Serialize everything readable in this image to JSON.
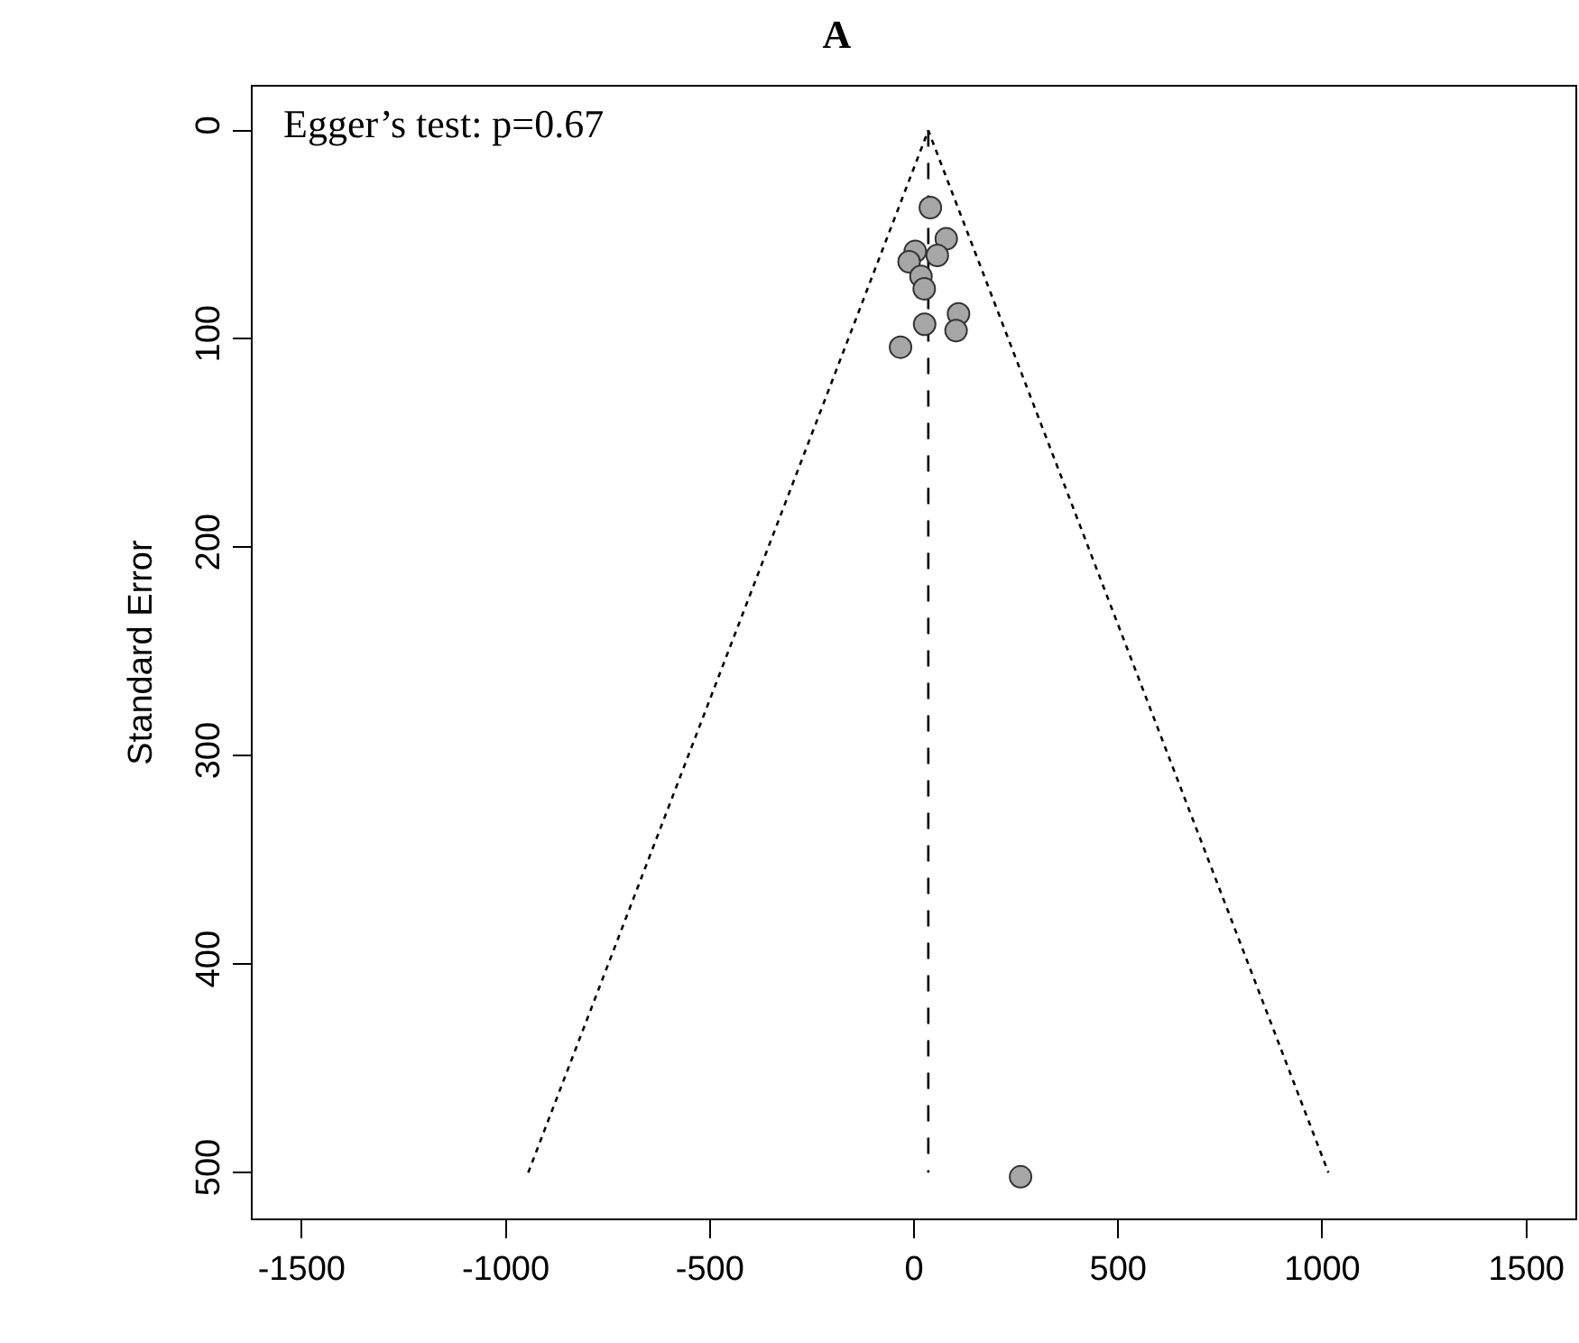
{
  "chart_data": {
    "type": "scatter",
    "title": "A",
    "ylabel": "Standard Error",
    "annotations": [
      "Egger’s test: p=0.67"
    ],
    "xlim": [
      -1620,
      1620
    ],
    "xticks": [
      -1500,
      -1000,
      -500,
      0,
      500,
      1000,
      1500
    ],
    "ylim": [
      522,
      -21
    ],
    "yticks": [
      0,
      100,
      200,
      300,
      400,
      500
    ],
    "series": [
      {
        "type": "line",
        "line_style": "dotted",
        "marker": "none",
        "color": "#000000",
        "x": [
          -945,
          35,
          1015
        ],
        "values": [
          500,
          0,
          500
        ]
      },
      {
        "type": "line",
        "line_style": "dashed",
        "marker": "none",
        "color": "#000000",
        "x": [
          35,
          35
        ],
        "values": [
          0,
          500
        ]
      },
      {
        "marker": "circle",
        "color": "#a6a6a6",
        "x": [
          40,
          79,
          57,
          3,
          -12,
          17,
          25,
          26,
          109,
          103,
          -33,
          261
        ],
        "values": [
          37,
          52,
          60,
          58,
          63,
          70,
          76,
          93,
          88,
          96,
          104,
          502
        ]
      }
    ]
  }
}
